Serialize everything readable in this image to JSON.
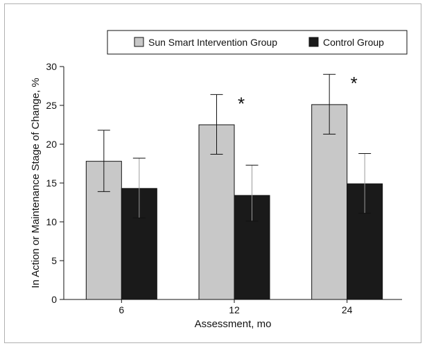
{
  "chart_data": {
    "type": "bar",
    "categories": [
      "6",
      "12",
      "24"
    ],
    "series": [
      {
        "name": "Sun Smart Intervention Group",
        "values": [
          17.8,
          22.5,
          25.1
        ],
        "error_low": [
          13.9,
          18.7,
          21.3
        ],
        "error_high": [
          21.8,
          26.4,
          29.0
        ],
        "color": "#c8c8c8"
      },
      {
        "name": "Control Group",
        "values": [
          14.3,
          13.4,
          14.9
        ],
        "error_low": [
          10.5,
          10.1,
          11.1
        ],
        "error_high": [
          18.2,
          17.3,
          18.8
        ],
        "color": "#1a1a1a"
      }
    ],
    "xlabel": "Assessment, mo",
    "ylabel": "In Action or Maintenance Stage of Change, %",
    "ylim": [
      0,
      30
    ],
    "yticks": [
      0,
      5,
      10,
      15,
      20,
      25,
      30
    ],
    "annotations": [
      {
        "category": "12",
        "text": "*"
      },
      {
        "category": "24",
        "text": "*"
      }
    ],
    "legend_position": "top",
    "grid": false
  }
}
